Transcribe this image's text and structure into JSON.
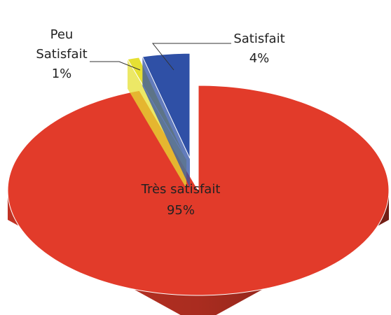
{
  "chart_data": {
    "type": "pie",
    "categories": [
      "Très satisfait",
      "Peu Satisfait",
      "Satisfait"
    ],
    "values": [
      95,
      1,
      4
    ],
    "value_labels": [
      "95%",
      "1%",
      "4%"
    ],
    "colors": [
      "#e23b2a",
      "#e6e033",
      "#2f50a6"
    ]
  }
}
